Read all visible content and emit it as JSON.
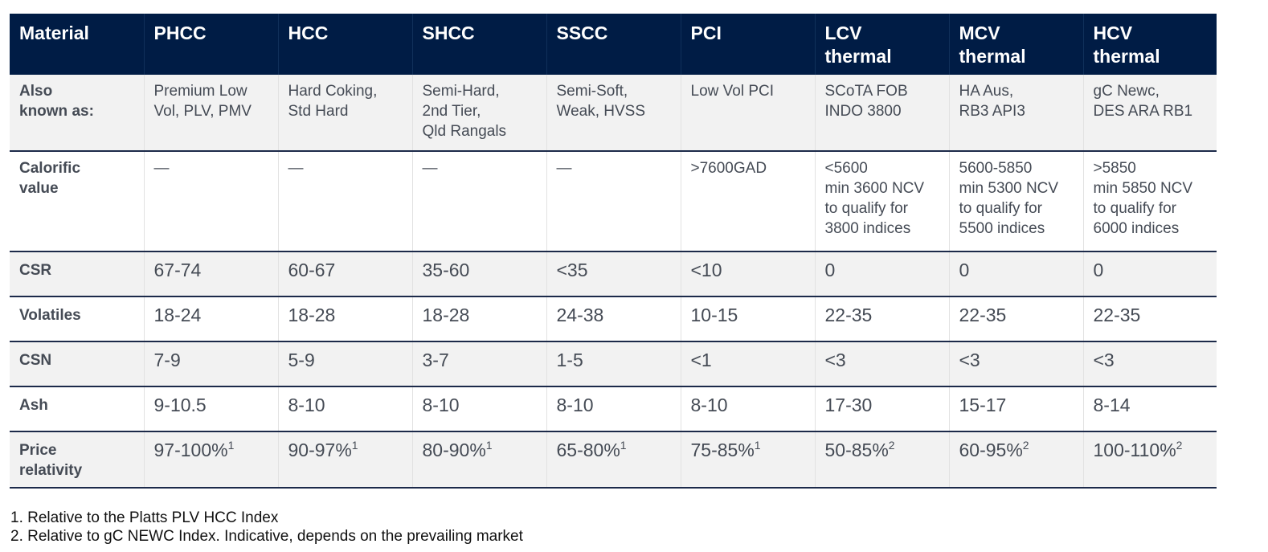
{
  "header": [
    "Material",
    "PHCC",
    "HCC",
    "SHCC",
    "SSCC",
    "PCI",
    "LCV\nthermal",
    "MCV\nthermal",
    "HCV\nthermal"
  ],
  "rows": {
    "aka": {
      "label": "Also\nknown as:",
      "cells": [
        "Premium Low\nVol, PLV, PMV",
        "Hard Coking,\nStd Hard",
        "Semi-Hard,\n2nd Tier,\nQld Rangals",
        "Semi-Soft,\nWeak, HVSS",
        "Low Vol PCI",
        "SCoTA FOB\nINDO 3800",
        "HA Aus,\nRB3 API3",
        "gC Newc,\nDES ARA RB1"
      ]
    },
    "calorific": {
      "label": "Calorific\nvalue",
      "cells": [
        "—",
        "—",
        "—",
        "—",
        ">7600GAD",
        "<5600\nmin 3600 NCV\nto qualify for\n3800 indices",
        "5600-5850\nmin 5300 NCV\nto qualify for\n5500 indices",
        ">5850\nmin 5850 NCV\nto qualify for\n6000 indices"
      ]
    },
    "csr": {
      "label": "CSR",
      "cells": [
        "67-74",
        "60-67",
        "35-60",
        "<35",
        "<10",
        "0",
        "0",
        "0"
      ]
    },
    "volatiles": {
      "label": "Volatiles",
      "cells": [
        "18-24",
        "18-28",
        "18-28",
        "24-38",
        "10-15",
        "22-35",
        "22-35",
        "22-35"
      ]
    },
    "csn": {
      "label": "CSN",
      "cells": [
        "7-9",
        "5-9",
        "3-7",
        "1-5",
        "<1",
        "<3",
        "<3",
        "<3"
      ]
    },
    "ash": {
      "label": "Ash",
      "cells": [
        "9-10.5",
        "8-10",
        "8-10",
        "8-10",
        "8-10",
        "17-30",
        "15-17",
        "8-14"
      ]
    },
    "price": {
      "label": "Price\nrelativity",
      "values": [
        "97-100%",
        "90-97%",
        "80-90%",
        "65-80%",
        "75-85%",
        "50-85%",
        "60-95%",
        "100-110%"
      ],
      "notes": [
        "1",
        "1",
        "1",
        "1",
        "1",
        "2",
        "2",
        "2"
      ]
    }
  },
  "footnotes": [
    "1. Relative to the Platts PLV HCC Index",
    "2. Relative to gC NEWC Index. Indicative, depends on the prevailing market"
  ]
}
